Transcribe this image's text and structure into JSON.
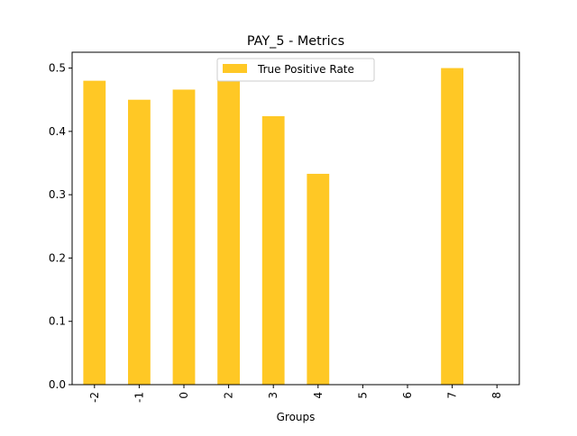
{
  "chart_data": {
    "type": "bar",
    "title": "PAY_5 - Metrics",
    "xlabel": "Groups",
    "ylabel": "",
    "categories": [
      "-2",
      "-1",
      "0",
      "2",
      "3",
      "4",
      "5",
      "6",
      "7",
      "8"
    ],
    "series": [
      {
        "name": "True Positive Rate",
        "color": "#ffc825",
        "values": [
          0.48,
          0.45,
          0.466,
          0.48,
          0.424,
          0.333,
          0,
          0,
          0.5,
          0
        ]
      }
    ],
    "ylim": [
      0,
      0.525
    ],
    "yticks": [
      "0.0",
      "0.1",
      "0.2",
      "0.3",
      "0.4",
      "0.5"
    ],
    "grid": false,
    "legend": "top-center"
  }
}
